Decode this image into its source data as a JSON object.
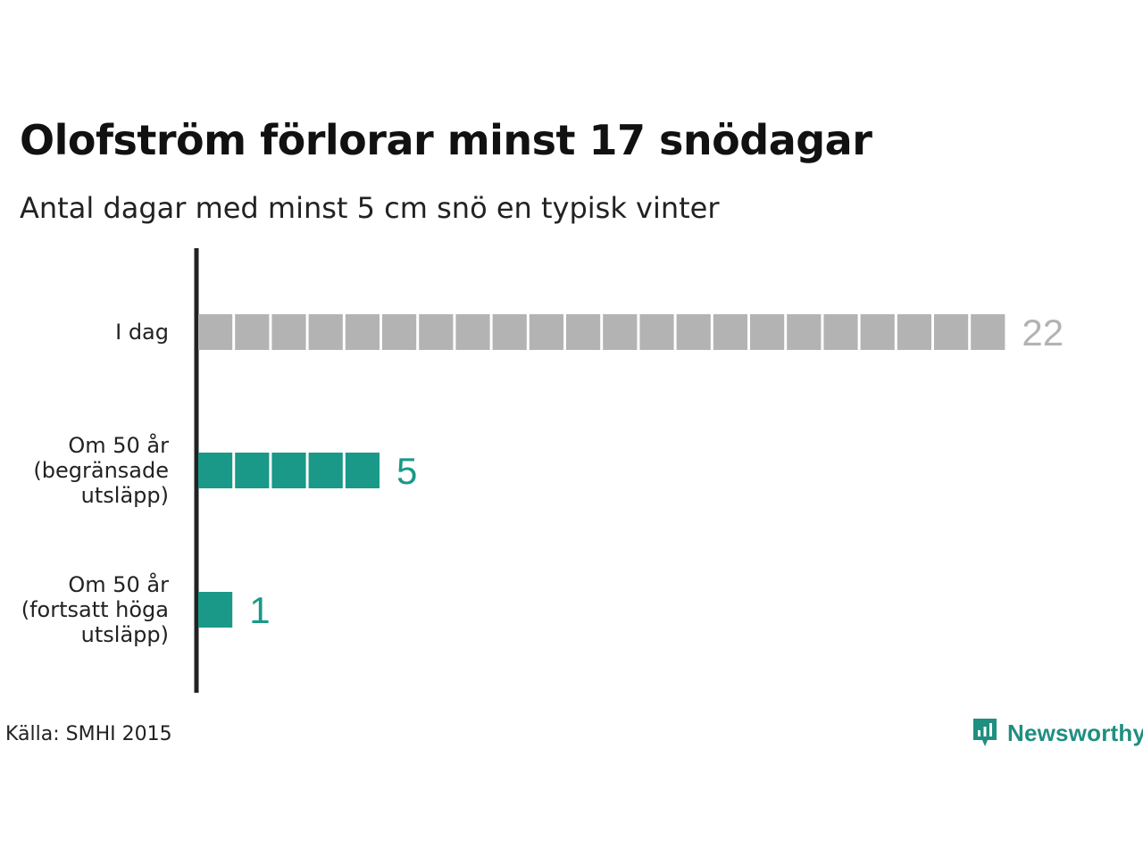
{
  "title": "Olofström förlorar minst 17 snödagar",
  "subtitle": "Antal dagar med minst 5 cm snö en typisk vinter",
  "source": "Källa: SMHI 2015",
  "logo": {
    "text": "Newsworthy",
    "icon": "newsworthy-chart-icon"
  },
  "colors": {
    "today": "#b3b3b3",
    "future": "#1a9988",
    "axis": "#222222"
  },
  "chart_data": {
    "type": "bar",
    "orientation": "horizontal",
    "style": "unit-squares",
    "categories": [
      "I dag",
      "Om 50 år (begränsade utsläpp)",
      "Om 50 år (fortsatt höga utsläpp)"
    ],
    "category_lines": [
      [
        "I dag"
      ],
      [
        "Om 50 år",
        "(begränsade",
        "utsläpp)"
      ],
      [
        "Om 50 år",
        "(fortsatt höga",
        "utsläpp)"
      ]
    ],
    "values": [
      22,
      5,
      1
    ],
    "value_labels": [
      "22",
      "5",
      "1"
    ],
    "grid": false,
    "legend": "none"
  }
}
